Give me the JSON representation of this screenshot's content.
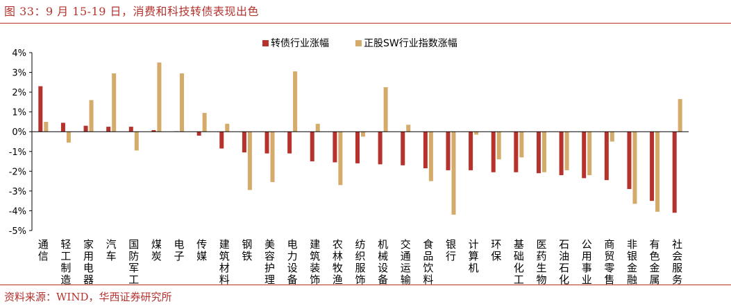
{
  "header": {
    "title": "图 33：9 月 15-19 日，消费和科技转债表现出色"
  },
  "footer": {
    "source": "资料来源：WIND，华西证券研究所"
  },
  "colors": {
    "brand": "#b5322d",
    "series1": "#b5322d",
    "series2": "#d4ab6a",
    "axis": "#000000"
  },
  "chart_data": {
    "type": "bar",
    "categories": [
      "通信",
      "轻工制造",
      "家用电器",
      "汽车",
      "国防军工",
      "煤炭",
      "电子",
      "传媒",
      "建筑材料",
      "钢铁",
      "美容护理",
      "电力设备",
      "建筑装饰",
      "农林牧渔",
      "纺织服饰",
      "机械设备",
      "交通运输",
      "食品饮料",
      "银行",
      "计算机",
      "环保",
      "基础化工",
      "医药生物",
      "石油石化",
      "公用事业",
      "商贸零售",
      "非银金融",
      "有色金属",
      "社会服务"
    ],
    "series": [
      {
        "name": "转债行业涨幅",
        "values": [
          2.3,
          0.45,
          0.3,
          0.25,
          0.25,
          0.08,
          0.02,
          -0.2,
          -0.85,
          -1.05,
          -1.1,
          -1.1,
          -1.5,
          -1.55,
          -1.6,
          -1.65,
          -1.7,
          -1.85,
          -1.95,
          -1.95,
          -2.05,
          -2.05,
          -2.1,
          -2.2,
          -2.35,
          -2.45,
          -2.9,
          -3.5,
          -4.1
        ]
      },
      {
        "name": "正股SW行业指数涨幅",
        "values": [
          0.5,
          -0.55,
          1.6,
          2.95,
          -0.95,
          3.5,
          2.95,
          0.95,
          0.4,
          -2.95,
          -2.55,
          3.05,
          0.4,
          -2.7,
          -0.25,
          2.25,
          0.35,
          -2.5,
          -4.2,
          -0.15,
          -1.4,
          -1.3,
          -2.05,
          -1.95,
          -2.2,
          -0.5,
          -3.65,
          -4.05,
          1.65
        ]
      }
    ],
    "ylim": [
      -5,
      4
    ],
    "yticks": [
      "4%",
      "3%",
      "2%",
      "1%",
      "0%",
      "-1%",
      "-2%",
      "-3%",
      "-4%",
      "-5%"
    ],
    "ytick_values": [
      4,
      3,
      2,
      1,
      0,
      -1,
      -2,
      -3,
      -4,
      -5
    ],
    "grid": false,
    "legend_position": "top-center"
  }
}
